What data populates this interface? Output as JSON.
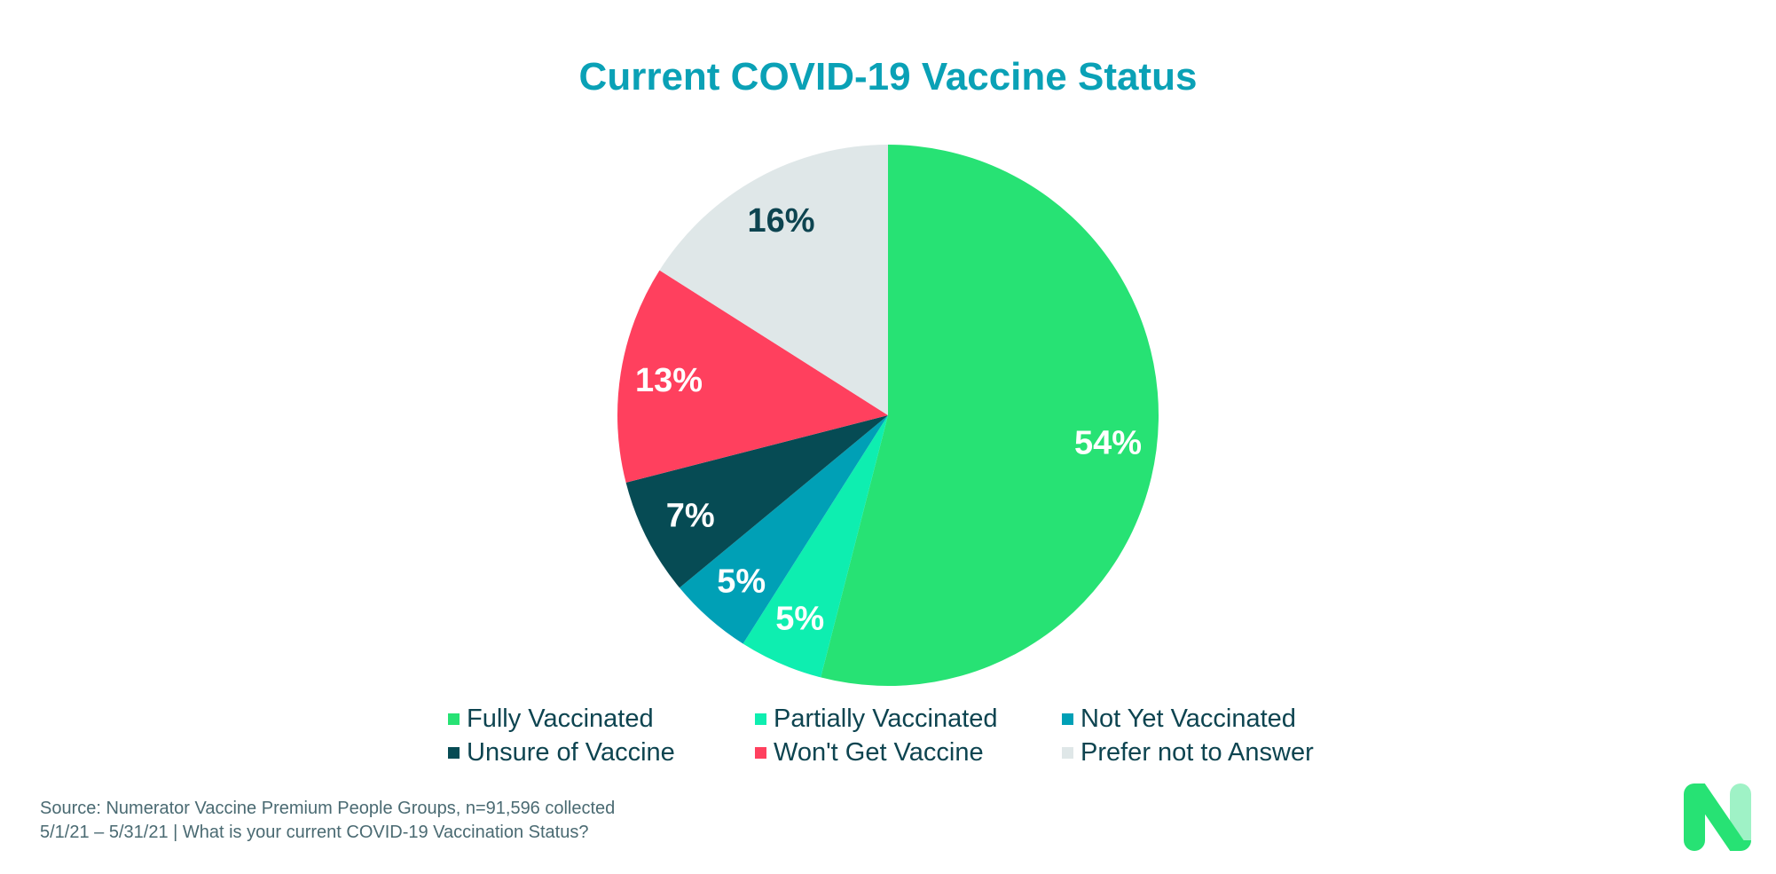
{
  "chart_data": {
    "type": "pie",
    "title": "Current COVID-19 Vaccine Status",
    "slices": [
      {
        "name": "Fully Vaccinated",
        "value": 54,
        "label": "54%",
        "color": "#27e274",
        "label_color": "#ffffff"
      },
      {
        "name": "Partially Vaccinated",
        "value": 5,
        "label": "5%",
        "color": "#0eeeb0",
        "label_color": "#ffffff"
      },
      {
        "name": "Not Yet Vaccinated",
        "value": 5,
        "label": "5%",
        "color": "#00a0b6",
        "label_color": "#ffffff"
      },
      {
        "name": "Unsure of Vaccine",
        "value": 7,
        "label": "7%",
        "color": "#064b54",
        "label_color": "#ffffff"
      },
      {
        "name": "Won't Get Vaccine",
        "value": 13,
        "label": "13%",
        "color": "#ff405e",
        "label_color": "#ffffff"
      },
      {
        "name": "Prefer not to Answer",
        "value": 16,
        "label": "16%",
        "color": "#dfe7e8",
        "label_color": "#0d4450"
      }
    ],
    "start": "12 o'clock",
    "direction": "clockwise",
    "legend_position": "bottom"
  },
  "footer": {
    "source_line1": "Source: Numerator Vaccine Premium People Groups, n=91,596 collected",
    "source_line2": "5/1/21 – 5/31/21 | What is your current COVID-19 Vaccination Status?"
  },
  "logo": {
    "icon": "numerator-n-logo",
    "color": "#27e274"
  }
}
